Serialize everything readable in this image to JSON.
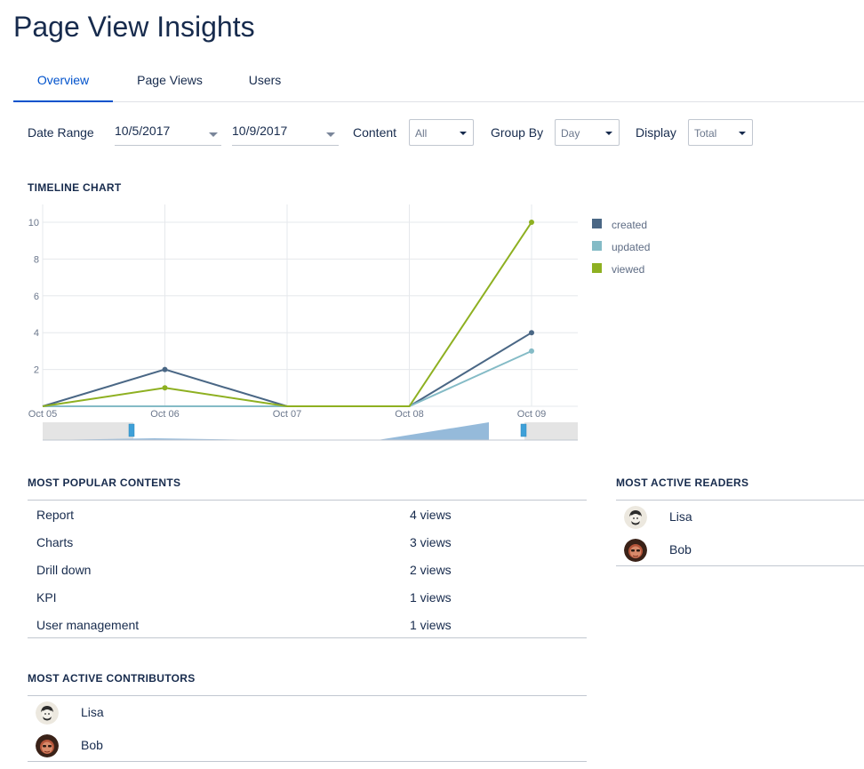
{
  "page_title": "Page View Insights",
  "tabs": [
    {
      "label": "Overview",
      "active": true
    },
    {
      "label": "Page Views",
      "active": false
    },
    {
      "label": "Users",
      "active": false
    }
  ],
  "filters": {
    "date_range_label": "Date Range",
    "start_date": "10/5/2017",
    "end_date": "10/9/2017",
    "content_label": "Content",
    "content_value": "All",
    "group_by_label": "Group By",
    "group_by_value": "Day",
    "display_label": "Display",
    "display_value": "Total"
  },
  "timeline": {
    "section_title": "TIMELINE CHART"
  },
  "chart_data": {
    "type": "line",
    "x": [
      "Oct 05",
      "Oct 06",
      "Oct 07",
      "Oct 08",
      "Oct 09"
    ],
    "series": [
      {
        "name": "created",
        "color": "#4a6785",
        "values": [
          0,
          2,
          0,
          0,
          4
        ]
      },
      {
        "name": "updated",
        "color": "#84bbc6",
        "values": [
          0,
          0,
          0,
          0,
          3
        ]
      },
      {
        "name": "viewed",
        "color": "#8eb021",
        "values": [
          0,
          1,
          0,
          0,
          10
        ]
      }
    ],
    "yticks": [
      "2",
      "4",
      "6",
      "8",
      "10"
    ],
    "ylim": [
      0,
      10
    ],
    "grid": true,
    "legend": "right"
  },
  "popular_contents": {
    "section_title": "MOST POPULAR CONTENTS",
    "rows": [
      {
        "name": "Report",
        "views": "4 views"
      },
      {
        "name": "Charts",
        "views": "3 views"
      },
      {
        "name": "Drill down",
        "views": "2 views"
      },
      {
        "name": "KPI",
        "views": "1 views"
      },
      {
        "name": "User management",
        "views": "1 views"
      }
    ]
  },
  "active_readers": {
    "section_title": "MOST ACTIVE READERS",
    "people": [
      {
        "name": "Lisa"
      },
      {
        "name": "Bob"
      }
    ]
  },
  "active_contributors": {
    "section_title": "MOST ACTIVE CONTRIBUTORS",
    "people": [
      {
        "name": "Lisa"
      },
      {
        "name": "Bob"
      }
    ]
  }
}
